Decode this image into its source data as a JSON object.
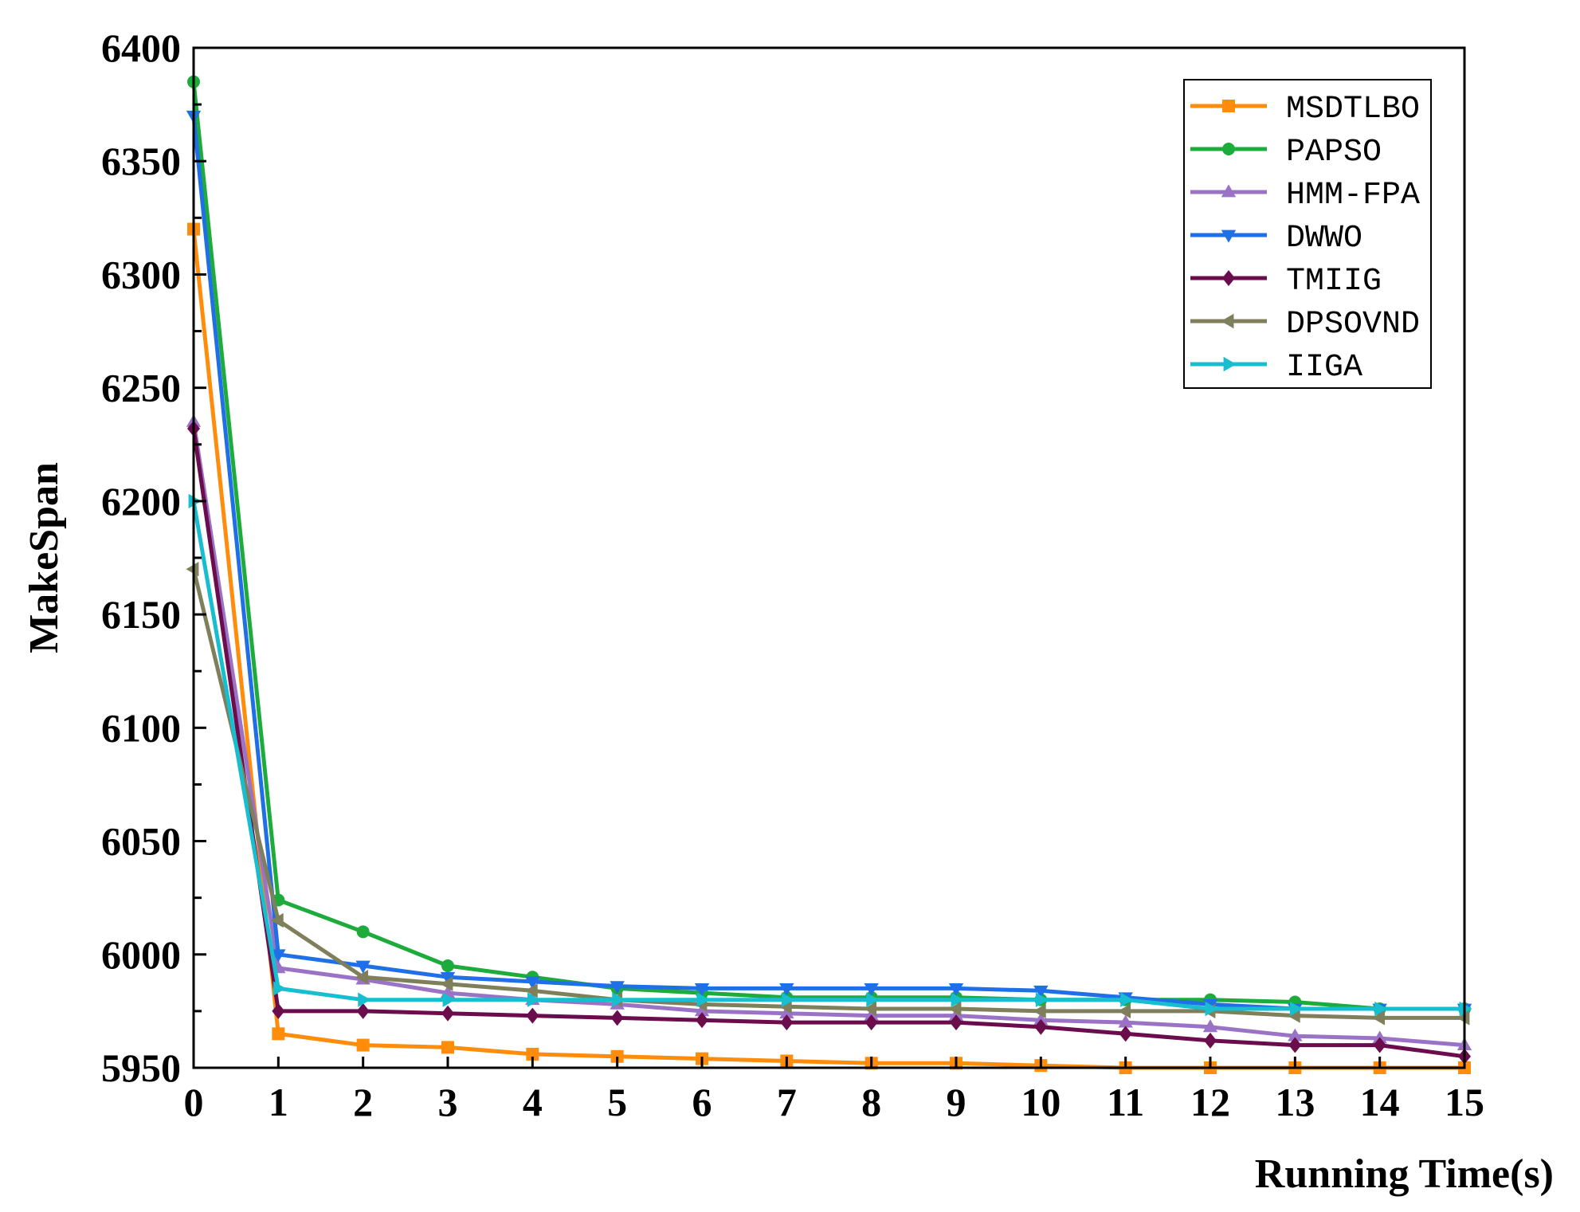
{
  "chart_data": {
    "type": "line",
    "title": "",
    "xlabel": "Running Time(s)",
    "ylabel": "MakeSpan",
    "xlim": [
      0,
      15
    ],
    "ylim": [
      5950,
      6400
    ],
    "x_ticks": [
      "0",
      "1",
      "2",
      "3",
      "4",
      "5",
      "6",
      "7",
      "8",
      "9",
      "10",
      "11",
      "12",
      "13",
      "14",
      "15"
    ],
    "y_ticks": [
      "5950",
      "6000",
      "6050",
      "6100",
      "6150",
      "6200",
      "6250",
      "6300",
      "6350",
      "6400"
    ],
    "x": [
      0,
      1,
      2,
      3,
      4,
      5,
      6,
      7,
      8,
      9,
      10,
      11,
      12,
      13,
      14,
      15
    ],
    "grid": false,
    "legend_position": "top-right",
    "series": [
      {
        "name": "MSDTLBO",
        "color": "#ff8c0a",
        "marker": "square",
        "values": [
          6320,
          5965,
          5960,
          5959,
          5956,
          5955,
          5954,
          5953,
          5952,
          5952,
          5951,
          5950,
          5950,
          5950,
          5950,
          5950
        ]
      },
      {
        "name": "PAPSO",
        "color": "#1dab3c",
        "marker": "circle",
        "values": [
          6385,
          6024,
          6010,
          5995,
          5990,
          5985,
          5983,
          5981,
          5981,
          5981,
          5980,
          5980,
          5980,
          5979,
          5976,
          5976
        ]
      },
      {
        "name": "HMM-FPA",
        "color": "#9a73c7",
        "marker": "triangle-up",
        "values": [
          6235,
          5994,
          5989,
          5983,
          5980,
          5978,
          5975,
          5974,
          5973,
          5973,
          5971,
          5970,
          5968,
          5964,
          5963,
          5960
        ]
      },
      {
        "name": "DWWO",
        "color": "#1f6fe6",
        "marker": "triangle-down",
        "values": [
          6370,
          6000,
          5995,
          5990,
          5988,
          5986,
          5985,
          5985,
          5985,
          5985,
          5984,
          5981,
          5978,
          5976,
          5976,
          5976
        ]
      },
      {
        "name": "TMIIG",
        "color": "#6b0c4c",
        "marker": "diamond",
        "values": [
          6232,
          5975,
          5975,
          5974,
          5973,
          5972,
          5971,
          5970,
          5970,
          5970,
          5968,
          5965,
          5962,
          5960,
          5960,
          5955
        ]
      },
      {
        "name": "DPSOVND",
        "color": "#7f7f5c",
        "marker": "triangle-left",
        "values": [
          6170,
          6015,
          5990,
          5987,
          5984,
          5980,
          5978,
          5977,
          5976,
          5976,
          5975,
          5975,
          5975,
          5973,
          5972,
          5972
        ]
      },
      {
        "name": "IIGA",
        "color": "#17becf",
        "marker": "triangle-right",
        "values": [
          6200,
          5985,
          5980,
          5980,
          5980,
          5980,
          5980,
          5980,
          5980,
          5980,
          5980,
          5980,
          5976,
          5976,
          5976,
          5976
        ]
      }
    ]
  }
}
